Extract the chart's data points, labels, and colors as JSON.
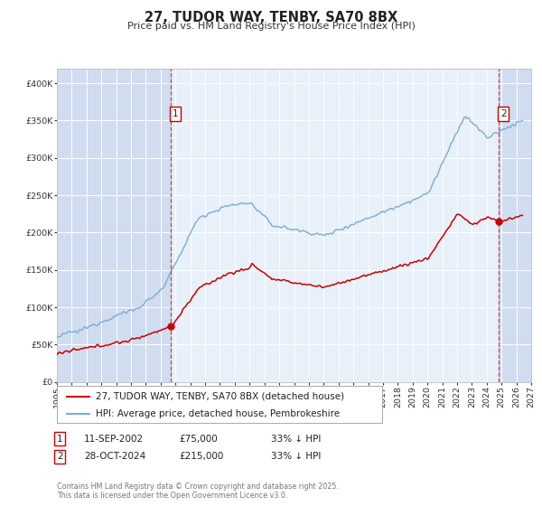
{
  "title": "27, TUDOR WAY, TENBY, SA70 8BX",
  "subtitle": "Price paid vs. HM Land Registry's House Price Index (HPI)",
  "legend_label_red": "27, TUDOR WAY, TENBY, SA70 8BX (detached house)",
  "legend_label_blue": "HPI: Average price, detached house, Pembrokeshire",
  "annotation1_label": "1",
  "annotation1_date": "11-SEP-2002",
  "annotation1_price": "£75,000",
  "annotation1_pct": "33% ↓ HPI",
  "annotation2_label": "2",
  "annotation2_date": "28-OCT-2024",
  "annotation2_price": "£215,000",
  "annotation2_pct": "33% ↓ HPI",
  "footer": "Contains HM Land Registry data © Crown copyright and database right 2025.\nThis data is licensed under the Open Government Licence v3.0.",
  "red_color": "#cc0000",
  "blue_color": "#7aadd4",
  "plot_bg_color": "#e8f0fa",
  "shade_color": "#d0ddf0",
  "vline_color": "#cc4444",
  "ylim": [
    0,
    420000
  ],
  "xlim_start": 1995.0,
  "xlim_end": 2027.0,
  "event1_year": 2002.71,
  "event2_year": 2024.83,
  "event1_price": 75000,
  "event2_price": 215000
}
